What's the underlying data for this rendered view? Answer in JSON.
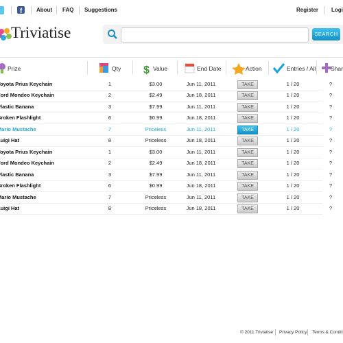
{
  "header": {
    "nav": [
      "About",
      "FAQ",
      "Suggestions"
    ],
    "auth": [
      "Register",
      "Login"
    ]
  },
  "logo": "Triviatise",
  "search": {
    "button": "SEARCH"
  },
  "table": {
    "columns": [
      "Prize",
      "Qty",
      "Value",
      "End Date",
      "Action",
      "Entries / All",
      "Share"
    ],
    "rows": [
      [
        "Toyota Prius Keychain",
        "1",
        "$3.00",
        "Jun 11, 2011",
        "TAKE",
        "1 / 20",
        "?"
      ],
      [
        "Ford Mondeo Keychain",
        "2",
        "$2.49",
        "Jun 18, 2011",
        "TAKE",
        "1 / 20",
        "?"
      ],
      [
        "Plastic Banana",
        "3",
        "$7.99",
        "Jun 11, 2011",
        "TAKE",
        "1 / 20",
        "?"
      ],
      [
        "Broken Flashlight",
        "6",
        "$0.99",
        "Jun 18, 2011",
        "TAKE",
        "1 / 20",
        "?"
      ],
      [
        "Mario Mustache",
        "7",
        "Priceless",
        "Jun 11, 2011",
        "TAKE",
        "1 / 20",
        "?"
      ],
      [
        "Luigi Hat",
        "8",
        "Priceless",
        "Jun 18, 2011",
        "TAKE",
        "1 / 20",
        "?"
      ],
      [
        "Toyota Prius Keychain",
        "1",
        "$3.00",
        "Jun 11, 2011",
        "TAKE",
        "1 / 20",
        "?"
      ],
      [
        "Ford Mondeo Keychain",
        "2",
        "$2.49",
        "Jun 18, 2011",
        "TAKE",
        "1 / 20",
        "?"
      ],
      [
        "Plastic Banana",
        "3",
        "$7.99",
        "Jun 11, 2011",
        "TAKE",
        "1 / 20",
        "?"
      ],
      [
        "Broken Flashlight",
        "6",
        "$0.99",
        "Jun 18, 2011",
        "TAKE",
        "1 / 20",
        "?"
      ],
      [
        "Mario Mustache",
        "7",
        "Priceless",
        "Jun 11, 2011",
        "TAKE",
        "1 / 20",
        "?"
      ],
      [
        "Luigi Hat",
        "8",
        "Priceless",
        "Jun 18, 2011",
        "TAKE",
        "1 / 20",
        "?"
      ]
    ]
  },
  "footer": {
    "links": [
      "© 2011 Triviatise",
      "Privacy Policy",
      "Terms & Conditions"
    ]
  }
}
